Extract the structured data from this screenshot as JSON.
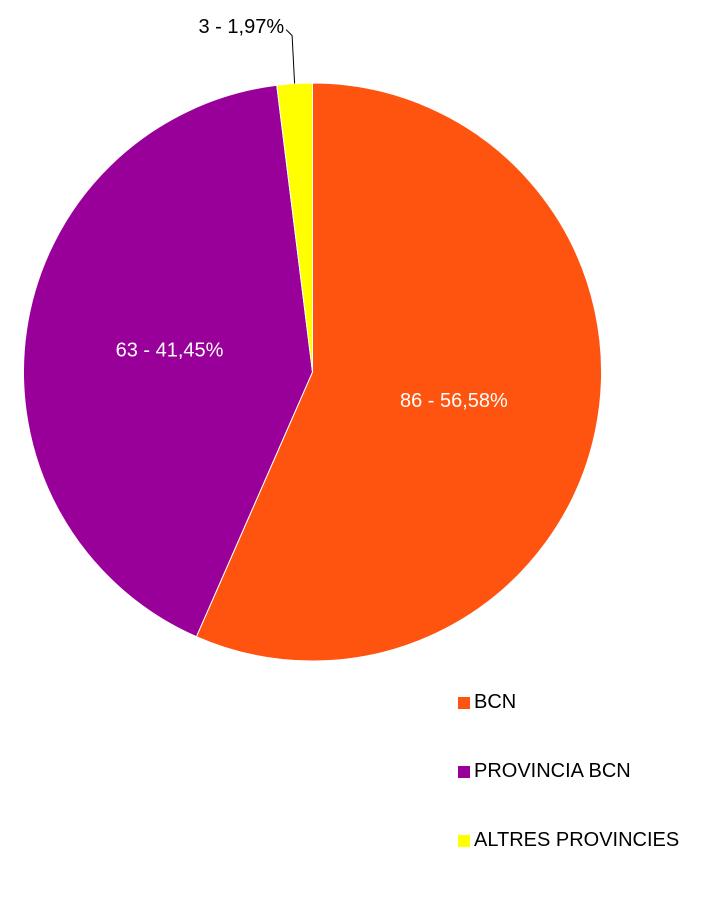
{
  "chart_data": {
    "type": "pie",
    "categories": [
      "BCN",
      "PROVINCIA BCN",
      "ALTRES PROVINCIES"
    ],
    "values": [
      86,
      63,
      3
    ],
    "value_labels": [
      "86 - 56,58%",
      "63 - 41,45%",
      "3 - 1,97%"
    ],
    "colors": [
      "#ff5310",
      "#990099",
      "#ffff00"
    ],
    "legend": "bottom-right"
  }
}
